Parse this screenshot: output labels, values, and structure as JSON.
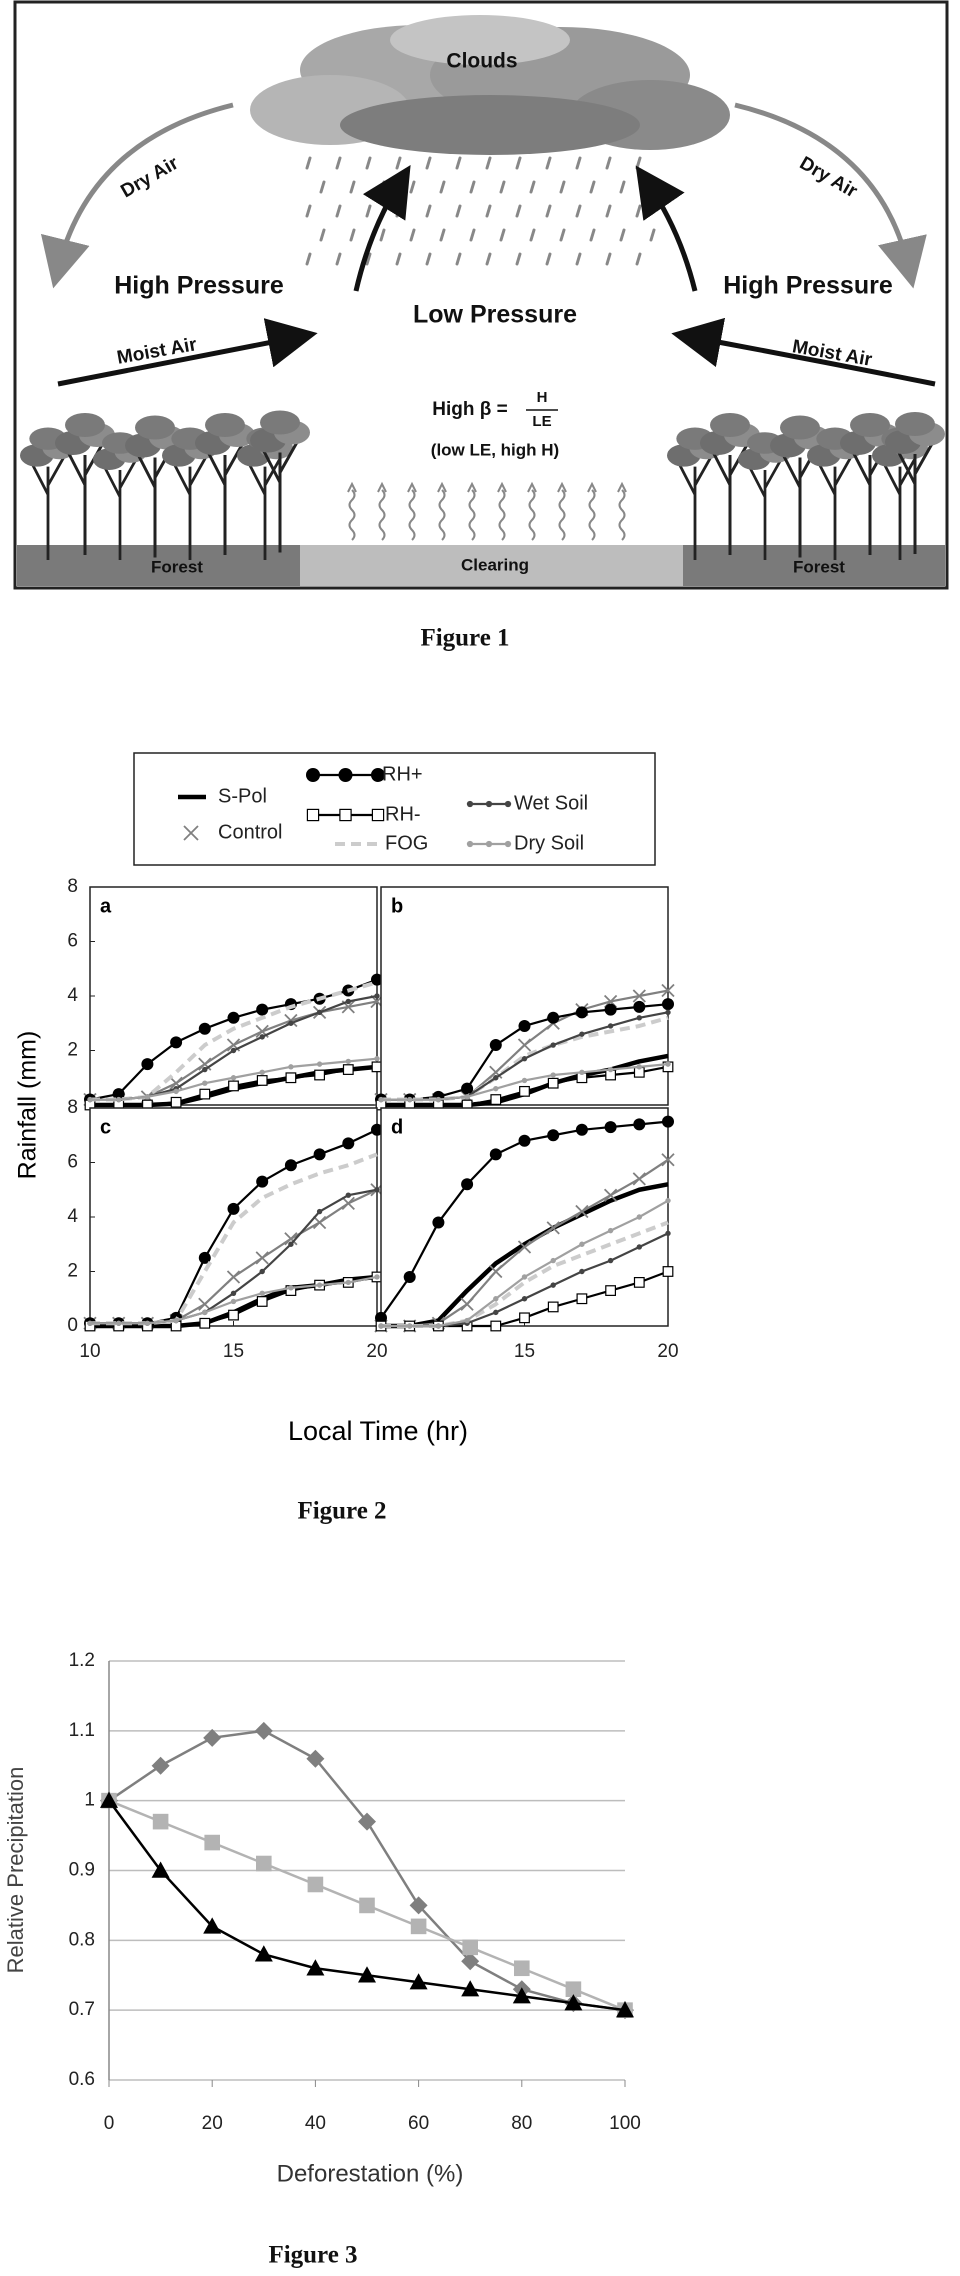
{
  "figure1": {
    "clouds": "Clouds",
    "left": {
      "dry_air": "Dry Air",
      "high_pressure": "High Pressure",
      "moist_air": "Moist Air",
      "forest": "Forest"
    },
    "right": {
      "dry_air": "Dry Air",
      "high_pressure": "High Pressure",
      "moist_air": "Moist Air",
      "forest": "Forest"
    },
    "low_pressure": "Low Pressure",
    "beta": {
      "label": "High β =",
      "numerator": "H",
      "denominator": "LE",
      "note": "(low LE, high H)"
    },
    "clearing": "Clearing",
    "caption": "Figure 1"
  },
  "chart_data": [
    {
      "type": "line",
      "caption": "Figure 2",
      "y_label": "Rainfall (mm)",
      "x_label": "Local Time (hr)",
      "xlim": [
        10,
        20
      ],
      "ylim": [
        0,
        8
      ],
      "x": [
        10,
        11,
        12,
        13,
        14,
        15,
        16,
        17,
        18,
        19,
        20
      ],
      "series": [
        {
          "name": "S-Pol",
          "color": "#000000",
          "line_style": "thick"
        },
        {
          "name": "Control",
          "color": "#808080",
          "line_style": "solid",
          "marker": "x"
        },
        {
          "name": "RH+",
          "color": "#000000",
          "line_style": "solid",
          "marker": "circle"
        },
        {
          "name": "RH-",
          "color": "#000000",
          "line_style": "solid",
          "marker": "square"
        },
        {
          "name": "FOG",
          "color": "#cccccc",
          "line_style": "dashed"
        },
        {
          "name": "Wet Soil",
          "color": "#444444",
          "line_style": "solid",
          "marker": "dot"
        },
        {
          "name": "Dry Soil",
          "color": "#a0a0a0",
          "line_style": "solid",
          "marker": "dot"
        }
      ],
      "panels": [
        {
          "label": "a",
          "yticks": [
            2,
            4,
            6,
            8
          ],
          "series": [
            {
              "values": [
                0,
                0,
                0,
                0.05,
                0.3,
                0.6,
                0.8,
                1.0,
                1.2,
                1.3,
                1.4
              ]
            },
            {
              "values": [
                0.2,
                0.2,
                0.3,
                0.8,
                1.5,
                2.2,
                2.7,
                3.1,
                3.4,
                3.6,
                3.8
              ]
            },
            {
              "values": [
                0.2,
                0.4,
                1.5,
                2.3,
                2.8,
                3.2,
                3.5,
                3.7,
                3.9,
                4.2,
                4.6
              ]
            },
            {
              "values": [
                0,
                0,
                0,
                0.1,
                0.4,
                0.7,
                0.9,
                1.0,
                1.1,
                1.3,
                1.4
              ]
            },
            {
              "values": [
                0.2,
                0.2,
                0.3,
                1.2,
                2.2,
                2.8,
                3.2,
                3.6,
                3.9,
                4.2,
                4.5
              ]
            },
            {
              "values": [
                0.2,
                0.2,
                0.3,
                0.6,
                1.3,
                2.0,
                2.5,
                3.0,
                3.4,
                3.8,
                4.0
              ]
            },
            {
              "values": [
                0.2,
                0.2,
                0.3,
                0.5,
                0.8,
                1.0,
                1.2,
                1.4,
                1.5,
                1.6,
                1.7
              ]
            }
          ]
        },
        {
          "label": "b",
          "series": [
            {
              "values": [
                0,
                0,
                0,
                0,
                0.1,
                0.4,
                0.8,
                1.1,
                1.3,
                1.6,
                1.8
              ]
            },
            {
              "values": [
                0.2,
                0.2,
                0.2,
                0.3,
                1.2,
                2.2,
                3.0,
                3.5,
                3.8,
                4.0,
                4.2
              ]
            },
            {
              "values": [
                0.2,
                0.2,
                0.3,
                0.6,
                2.2,
                2.9,
                3.2,
                3.4,
                3.5,
                3.6,
                3.7
              ]
            },
            {
              "values": [
                0,
                0,
                0,
                0,
                0.2,
                0.5,
                0.8,
                1.0,
                1.1,
                1.2,
                1.4
              ]
            },
            {
              "values": [
                0.2,
                0.2,
                0.2,
                0.3,
                1.0,
                1.8,
                2.2,
                2.5,
                2.7,
                2.9,
                3.2
              ]
            },
            {
              "values": [
                0.2,
                0.2,
                0.2,
                0.3,
                1.0,
                1.7,
                2.2,
                2.6,
                2.9,
                3.2,
                3.4
              ]
            },
            {
              "values": [
                0.2,
                0.2,
                0.2,
                0.3,
                0.6,
                0.9,
                1.1,
                1.2,
                1.3,
                1.4,
                1.5
              ]
            }
          ]
        },
        {
          "label": "c",
          "yticks": [
            0,
            2,
            4,
            6,
            8
          ],
          "xticks": [
            10,
            15,
            20
          ],
          "series": [
            {
              "values": [
                0,
                0,
                0,
                0,
                0.1,
                0.5,
                1.0,
                1.4,
                1.5,
                1.7,
                1.8
              ]
            },
            {
              "values": [
                0.1,
                0.1,
                0.1,
                0.2,
                0.8,
                1.8,
                2.5,
                3.2,
                3.8,
                4.5,
                5.0
              ]
            },
            {
              "values": [
                0.1,
                0.1,
                0.1,
                0.3,
                2.5,
                4.3,
                5.3,
                5.9,
                6.3,
                6.7,
                7.2
              ]
            },
            {
              "values": [
                0,
                0,
                0,
                0,
                0.1,
                0.4,
                0.9,
                1.3,
                1.5,
                1.6,
                1.8
              ]
            },
            {
              "values": [
                0.1,
                0.1,
                0.1,
                0.2,
                2.0,
                3.8,
                4.7,
                5.2,
                5.6,
                5.9,
                6.3
              ]
            },
            {
              "values": [
                0.1,
                0.1,
                0.1,
                0.2,
                0.5,
                1.2,
                2.0,
                3.0,
                4.2,
                4.8,
                5.0
              ]
            },
            {
              "values": [
                0.1,
                0.1,
                0.1,
                0.2,
                0.5,
                0.9,
                1.2,
                1.4,
                1.5,
                1.6,
                1.8
              ]
            }
          ]
        },
        {
          "label": "d",
          "xticks": [
            15,
            20
          ],
          "series": [
            {
              "values": [
                0,
                0,
                0.2,
                1.3,
                2.3,
                3.0,
                3.6,
                4.1,
                4.6,
                5.0,
                5.2
              ]
            },
            {
              "values": [
                0,
                0,
                0.1,
                0.8,
                2.0,
                2.9,
                3.6,
                4.2,
                4.8,
                5.4,
                6.1
              ]
            },
            {
              "values": [
                0.3,
                1.8,
                3.8,
                5.2,
                6.3,
                6.8,
                7.0,
                7.2,
                7.3,
                7.4,
                7.5
              ]
            },
            {
              "values": [
                0,
                0,
                0,
                0,
                0,
                0.3,
                0.7,
                1.0,
                1.3,
                1.6,
                2.0
              ]
            },
            {
              "values": [
                0,
                0,
                0,
                0.2,
                0.8,
                1.6,
                2.2,
                2.6,
                3.0,
                3.4,
                3.8
              ]
            },
            {
              "values": [
                0,
                0,
                0,
                0.1,
                0.5,
                1.0,
                1.5,
                2.0,
                2.4,
                2.9,
                3.4
              ]
            },
            {
              "values": [
                0,
                0,
                0,
                0.2,
                1.0,
                1.8,
                2.4,
                3.0,
                3.5,
                4.0,
                4.6
              ]
            }
          ]
        }
      ]
    },
    {
      "type": "line",
      "caption": "Figure 3",
      "y_label": "Relative Precipitation",
      "x_label": "Deforestation (%)",
      "x": [
        0,
        10,
        20,
        30,
        40,
        50,
        60,
        70,
        80,
        90,
        100
      ],
      "xlim": [
        0,
        100
      ],
      "xticks": [
        0,
        20,
        40,
        60,
        80,
        100
      ],
      "ylim": [
        0.6,
        1.2
      ],
      "yticks": [
        0.6,
        0.7,
        0.8,
        0.9,
        1,
        1.1,
        1.2
      ],
      "grid": true,
      "series": [
        {
          "color": "#7f7f7f",
          "marker": "diamond",
          "values": [
            1,
            1.05,
            1.09,
            1.1,
            1.06,
            0.97,
            0.85,
            0.77,
            0.73,
            0.71,
            0.7
          ]
        },
        {
          "color": "#b3b3b3",
          "marker": "square",
          "values": [
            1,
            0.97,
            0.94,
            0.91,
            0.88,
            0.85,
            0.82,
            0.79,
            0.76,
            0.73,
            0.7
          ]
        },
        {
          "color": "#000000",
          "marker": "triangle",
          "values": [
            1,
            0.9,
            0.82,
            0.78,
            0.76,
            0.75,
            0.74,
            0.73,
            0.72,
            0.71,
            0.7
          ]
        }
      ]
    }
  ]
}
